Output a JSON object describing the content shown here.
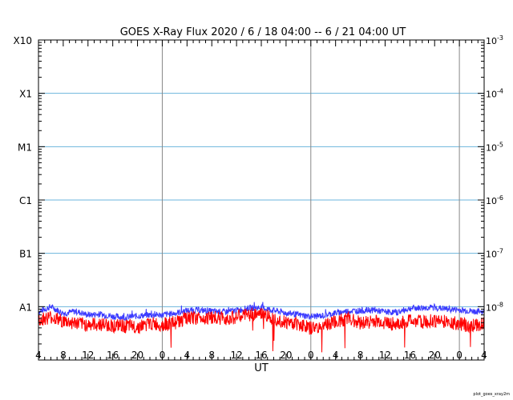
{
  "chart_data": {
    "type": "line",
    "title": "GOES X-Ray Flux   2020  /  6  /  18    04:00 --   6  /  21    04:00    UT",
    "xlabel": "UT",
    "footer": "plot_goes_xray2m",
    "x_start_hour": 4,
    "x_end_hour": 76,
    "x_ticks": [
      "4",
      "8",
      "12",
      "16",
      "20",
      "0",
      "4",
      "8",
      "12",
      "16",
      "20",
      "0",
      "4",
      "8",
      "12",
      "16",
      "20",
      "0",
      "4"
    ],
    "day_boundaries_hours": [
      24,
      48,
      72
    ],
    "yscale": "log",
    "ylim": [
      1e-09,
      0.001
    ],
    "y_left_labels": [
      {
        "value": 0.001,
        "label": "X10"
      },
      {
        "value": 0.0001,
        "label": "X1"
      },
      {
        "value": 1e-05,
        "label": "M1"
      },
      {
        "value": 1e-06,
        "label": "C1"
      },
      {
        "value": 1e-07,
        "label": "B1"
      },
      {
        "value": 1e-08,
        "label": "A1"
      }
    ],
    "y_right_labels": [
      {
        "value": 0.001,
        "exp": "-3"
      },
      {
        "value": 0.0001,
        "exp": "-4"
      },
      {
        "value": 1e-05,
        "exp": "-5"
      },
      {
        "value": 1e-06,
        "exp": "-6"
      },
      {
        "value": 1e-07,
        "exp": "-7"
      },
      {
        "value": 1e-08,
        "exp": "-8"
      }
    ],
    "grid_levels": [
      0.0001,
      1e-05,
      1e-06,
      1e-07,
      1e-08
    ],
    "colors": {
      "grid": "#6cb4dc",
      "day_line": "#888888",
      "long_channel": "#3b3bff",
      "short_channel": "#ff0000"
    },
    "series": [
      {
        "color": "#3b3bff",
        "x": [
          4,
          6,
          8,
          10,
          12,
          14,
          16,
          18,
          20,
          22,
          24,
          26,
          28,
          30,
          32,
          34,
          36,
          38,
          40,
          42,
          44,
          46,
          48,
          50,
          52,
          54,
          56,
          58,
          60,
          62,
          64,
          66,
          68,
          70,
          72,
          74,
          76
        ],
        "y": [
          8e-09,
          1e-08,
          7.5e-09,
          8.2e-09,
          7e-09,
          7.2e-09,
          6.6e-09,
          6.3e-09,
          6.7e-09,
          7e-09,
          7e-09,
          7.5e-09,
          8.5e-09,
          8.6e-09,
          8.2e-09,
          8e-09,
          8.5e-09,
          9.4e-09,
          9.6e-09,
          8.5e-09,
          7.6e-09,
          7e-09,
          6.5e-09,
          6.8e-09,
          7.6e-09,
          8.3e-09,
          8.4e-09,
          8.6e-09,
          8e-09,
          7.8e-09,
          9.3e-09,
          9.5e-09,
          9.6e-09,
          9e-09,
          8.7e-09,
          8.2e-09,
          8e-09
        ]
      },
      {
        "color": "#ff0000",
        "x": [
          4,
          6,
          8,
          10,
          12,
          14,
          16,
          18,
          20,
          22,
          24,
          26,
          28,
          30,
          32,
          34,
          36,
          38,
          40,
          42,
          44,
          46,
          48,
          50,
          52,
          54,
          56,
          58,
          60,
          62,
          64,
          66,
          68,
          70,
          72,
          74,
          76
        ],
        "y": [
          5.7e-09,
          6.4e-09,
          5.3e-09,
          4.9e-09,
          4.6e-09,
          4.7e-09,
          4.4e-09,
          4.3e-09,
          4.2e-09,
          4.8e-09,
          4.6e-09,
          5e-09,
          6e-09,
          6.2e-09,
          6.3e-09,
          6e-09,
          6.4e-09,
          7.1e-09,
          7.3e-09,
          6.2e-09,
          5.1e-09,
          4.8e-09,
          3.9e-09,
          4.4e-09,
          5.1e-09,
          6.1e-09,
          5e-09,
          5.3e-09,
          5.1e-09,
          4.6e-09,
          5.6e-09,
          5.1e-09,
          5.5e-09,
          5.3e-09,
          4.7e-09,
          4.4e-09,
          4.9e-09
        ]
      }
    ]
  }
}
